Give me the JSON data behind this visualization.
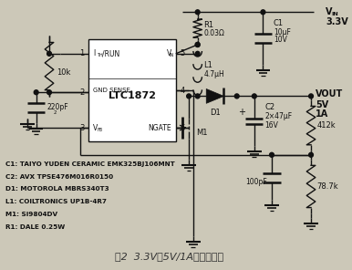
{
  "title": "图2  3.3V到5V/1A升压变换器",
  "bg_color": "#ccc8b8",
  "component_labels": [
    "C1: TAIYO YUDEN CERAMIC EMK325BJ106MNT",
    "C2: AVX TPSE476M016R0150",
    "D1: MOTOROLA MBRS340T3",
    "L1: COILTRONICS UP1B-4R7",
    "M1: Si9804DV",
    "R1: DALE 0.25W"
  ],
  "vin_label": "V",
  "vin_sub": "IN",
  "vin_val": "3.3V",
  "vout_label": "VOUT",
  "vout_val1": "5V",
  "vout_val2": "1A",
  "ic_label": "LTC1872",
  "pin1_label": "I",
  "pin1_sub": "TH",
  "pin1_suf": "/RUN",
  "pin5_label": "V",
  "pin5_sub": "IN",
  "pin4_label": "GND SENSE-",
  "pin6_label": "NGATE",
  "pin3_label": "V",
  "pin3_sub": "FB",
  "r1_label": "R1",
  "r1_val": "0.03Ω",
  "l1_label": "L1",
  "l1_val": "4.7μH",
  "c1_label": "C1",
  "c1_val1": "10μF",
  "c1_val2": "10V",
  "c2_label": "C2",
  "c2_val1": "2×47μF",
  "c2_val2": "16V",
  "d1_label": "D1",
  "m1_label": "M1",
  "r412_label": "412k",
  "r78_label": "78.7k",
  "c100_label": "100pF",
  "r10k_label": "10k",
  "c220_label": "220pF"
}
